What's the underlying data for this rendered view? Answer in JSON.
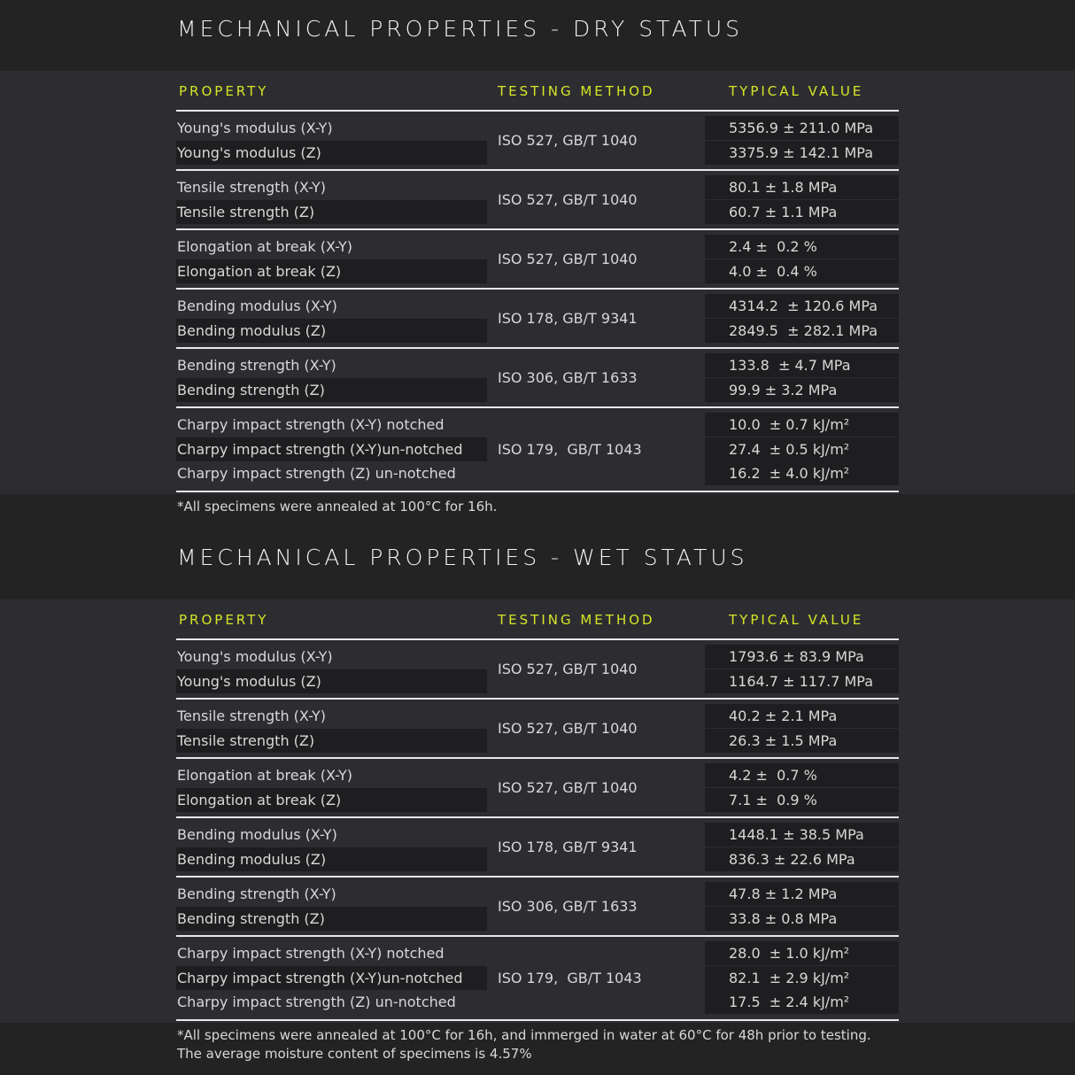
{
  "sections": [
    {
      "title": "MECHANICAL PROPERTIES - DRY STATUS",
      "headers": {
        "property": "PROPERTY",
        "method": "TESTING METHOD",
        "value": "TYPICAL VALUE"
      },
      "groups": [
        {
          "method": "ISO 527, GB/T 1040",
          "rows": [
            {
              "property": "Young's modulus (X-Y)",
              "value": "5356.9 ± 211.0 MPa"
            },
            {
              "property": "Young's modulus (Z)",
              "value": "3375.9 ± 142.1 MPa"
            }
          ]
        },
        {
          "method": "ISO 527, GB/T 1040",
          "rows": [
            {
              "property": "Tensile strength (X-Y)",
              "value": "80.1 ± 1.8 MPa"
            },
            {
              "property": "Tensile strength (Z)",
              "value": "60.7 ± 1.1 MPa"
            }
          ]
        },
        {
          "method": "ISO 527, GB/T 1040",
          "rows": [
            {
              "property": "Elongation at break (X-Y)",
              "value": "2.4 ±  0.2 %"
            },
            {
              "property": "Elongation at break (Z)",
              "value": "4.0 ±  0.4 %"
            }
          ]
        },
        {
          "method": "ISO 178, GB/T 9341",
          "rows": [
            {
              "property": "Bending modulus (X-Y)",
              "value": "4314.2  ± 120.6 MPa"
            },
            {
              "property": "Bending modulus (Z)",
              "value": "2849.5  ± 282.1 MPa"
            }
          ]
        },
        {
          "method": "ISO 306, GB/T 1633",
          "rows": [
            {
              "property": "Bending strength (X-Y)",
              "value": "133.8  ± 4.7 MPa"
            },
            {
              "property": "Bending strength (Z)",
              "value": "99.9 ± 3.2 MPa"
            }
          ]
        },
        {
          "method": "ISO 179,  GB/T 1043",
          "rows": [
            {
              "property": "Charpy impact strength (X-Y) notched",
              "value": "10.0  ± 0.7 kJ/m²"
            },
            {
              "property": "Charpy impact strength (X-Y)un-notched",
              "value": "27.4  ± 0.5 kJ/m²"
            },
            {
              "property": "Charpy impact strength (Z) un-notched",
              "value": "16.2  ± 4.0 kJ/m²"
            }
          ]
        }
      ],
      "footnote": "*All specimens were annealed at 100°C for 16h."
    },
    {
      "title": "MECHANICAL PROPERTIES - WET STATUS",
      "headers": {
        "property": "PROPERTY",
        "method": "TESTING METHOD",
        "value": "TYPICAL VALUE"
      },
      "groups": [
        {
          "method": "ISO 527, GB/T 1040",
          "rows": [
            {
              "property": "Young's modulus (X-Y)",
              "value": "1793.6 ± 83.9 MPa"
            },
            {
              "property": "Young's modulus (Z)",
              "value": "1164.7 ± 117.7 MPa"
            }
          ]
        },
        {
          "method": "ISO 527, GB/T 1040",
          "rows": [
            {
              "property": "Tensile strength (X-Y)",
              "value": "40.2 ± 2.1 MPa"
            },
            {
              "property": "Tensile strength (Z)",
              "value": "26.3 ± 1.5 MPa"
            }
          ]
        },
        {
          "method": "ISO 527, GB/T 1040",
          "rows": [
            {
              "property": "Elongation at break (X-Y)",
              "value": "4.2 ±  0.7 %"
            },
            {
              "property": "Elongation at break (Z)",
              "value": "7.1 ±  0.9 %"
            }
          ]
        },
        {
          "method": "ISO 178, GB/T 9341",
          "rows": [
            {
              "property": "Bending modulus (X-Y)",
              "value": "1448.1 ± 38.5 MPa"
            },
            {
              "property": "Bending modulus (Z)",
              "value": "836.3 ± 22.6 MPa"
            }
          ]
        },
        {
          "method": "ISO 306, GB/T 1633",
          "rows": [
            {
              "property": "Bending strength (X-Y)",
              "value": "47.8 ± 1.2 MPa"
            },
            {
              "property": "Bending strength (Z)",
              "value": "33.8 ± 0.8 MPa"
            }
          ]
        },
        {
          "method": "ISO 179,  GB/T 1043",
          "rows": [
            {
              "property": "Charpy impact strength (X-Y) notched",
              "value": "28.0  ± 1.0 kJ/m²"
            },
            {
              "property": "Charpy impact strength (X-Y)un-notched",
              "value": "82.1  ± 2.9 kJ/m²"
            },
            {
              "property": "Charpy impact strength (Z) un-notched",
              "value": "17.5  ± 2.4 kJ/m²"
            }
          ]
        }
      ],
      "footnote": "*All specimens were annealed at 100°C for 16h, and immerged in water at 60°C for 48h prior to testing. The average moisture content of specimens is 4.57%"
    }
  ]
}
